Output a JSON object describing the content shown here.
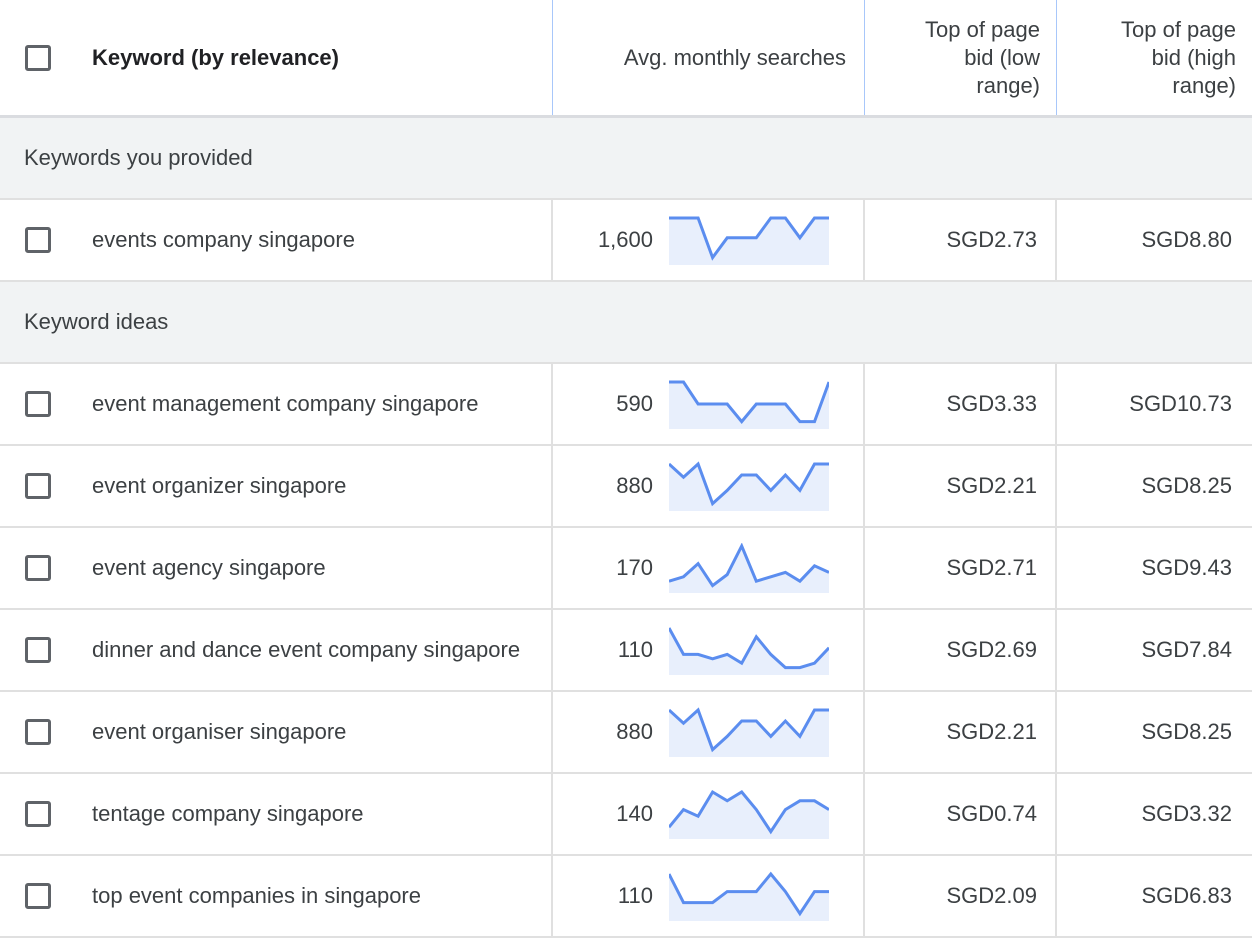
{
  "header": {
    "keyword": "Keyword (by relevance)",
    "avg": "Avg. monthly searches",
    "low_lines": [
      "Top of page",
      "bid (low",
      "range)"
    ],
    "high_lines": [
      "Top of page",
      "bid (high",
      "range)"
    ]
  },
  "colors": {
    "spark_line": "#5b8def",
    "spark_fill": "#e8effc"
  },
  "sections": [
    {
      "title": "Keywords you provided",
      "rows": [
        {
          "keyword": "events company singapore",
          "avg": "1,600",
          "low": "SGD2.73",
          "high": "SGD8.80",
          "trend": [
            1,
            1,
            1,
            0.1,
            0.55,
            0.55,
            0.55,
            1,
            1,
            0.55,
            1,
            1
          ]
        }
      ]
    },
    {
      "title": "Keyword ideas",
      "rows": [
        {
          "keyword": "event management company singapore",
          "avg": "590",
          "low": "SGD3.33",
          "high": "SGD10.73",
          "trend": [
            1,
            1,
            0.5,
            0.5,
            0.5,
            0.1,
            0.5,
            0.5,
            0.5,
            0.1,
            0.1,
            1
          ]
        },
        {
          "keyword": "event organizer singapore",
          "avg": "880",
          "low": "SGD2.21",
          "high": "SGD8.25",
          "trend": [
            1,
            0.7,
            1,
            0.1,
            0.4,
            0.75,
            0.75,
            0.4,
            0.75,
            0.4,
            1,
            1
          ]
        },
        {
          "keyword": "event agency singapore",
          "avg": "170",
          "low": "SGD2.71",
          "high": "SGD9.43",
          "trend": [
            0.2,
            0.3,
            0.6,
            0.1,
            0.35,
            1,
            0.2,
            0.3,
            0.4,
            0.2,
            0.55,
            0.4
          ]
        },
        {
          "keyword": "dinner and dance event company singapore",
          "avg": "110",
          "low": "SGD2.69",
          "high": "SGD7.84",
          "trend": [
            1,
            0.4,
            0.4,
            0.3,
            0.4,
            0.2,
            0.8,
            0.4,
            0.1,
            0.1,
            0.2,
            0.55
          ]
        },
        {
          "keyword": "event organiser singapore",
          "avg": "880",
          "low": "SGD2.21",
          "high": "SGD8.25",
          "trend": [
            1,
            0.7,
            1,
            0.1,
            0.4,
            0.75,
            0.75,
            0.4,
            0.75,
            0.4,
            1,
            1
          ]
        },
        {
          "keyword": "tentage company singapore",
          "avg": "140",
          "low": "SGD0.74",
          "high": "SGD3.32",
          "trend": [
            0.2,
            0.6,
            0.45,
            1,
            0.8,
            1,
            0.6,
            0.1,
            0.6,
            0.8,
            0.8,
            0.6
          ]
        },
        {
          "keyword": "top event companies in singapore",
          "avg": "110",
          "low": "SGD2.09",
          "high": "SGD6.83",
          "trend": [
            1,
            0.35,
            0.35,
            0.35,
            0.6,
            0.6,
            0.6,
            1,
            0.6,
            0.1,
            0.6,
            0.6
          ]
        }
      ]
    }
  ]
}
